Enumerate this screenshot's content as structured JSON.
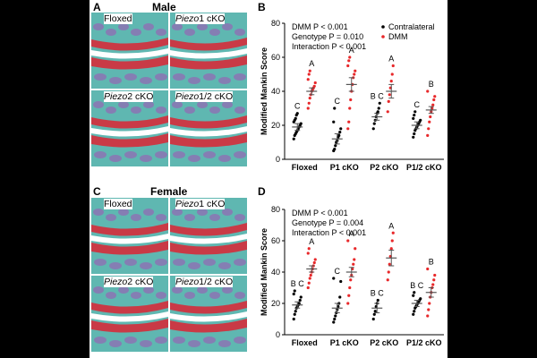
{
  "colors": {
    "contralateral": "#000000",
    "dmm": "#e8282a",
    "cartilage": "#c93a46",
    "bone": "#5fb7b1",
    "marrow": "#8a78b4"
  },
  "panels": [
    {
      "letter": "A",
      "title": "Male",
      "images": [
        {
          "label": "Floxed"
        },
        {
          "label_italic": "Piezo",
          "label_rest": "1 cKO"
        },
        {
          "label_italic": "Piezo",
          "label_rest": "2 cKO"
        },
        {
          "label_italic": "Piezo",
          "label_rest": "1/2 cKO"
        }
      ]
    },
    {
      "letter": "C",
      "title": "Female",
      "images": [
        {
          "label": "Floxed"
        },
        {
          "label_italic": "Piezo",
          "label_rest": "1 cKO"
        },
        {
          "label_italic": "Piezo",
          "label_rest": "2 cKO"
        },
        {
          "label_italic": "Piezo",
          "label_rest": "1/2 cKO"
        }
      ]
    }
  ],
  "chart_data": [
    {
      "letter": "B",
      "type": "scatter",
      "ylabel": "Modified Mankin Score",
      "ylim": [
        0,
        80
      ],
      "yticks": [
        0,
        20,
        40,
        60,
        80
      ],
      "categories": [
        "Floxed",
        "P1 cKO",
        "P2 cKO",
        "P1/2 cKO"
      ],
      "stats": [
        "DMM P < 0.001",
        "Genotype P = 0.010",
        "Interaction P < 0.001"
      ],
      "legend": [
        "Contralateral",
        "DMM"
      ],
      "series": [
        {
          "name": "Contralateral",
          "means": [
            19,
            12,
            25,
            20
          ],
          "sems": [
            2,
            3,
            2,
            2
          ],
          "letters": [
            "C",
            "C",
            "B C",
            "C"
          ],
          "points": [
            [
              12,
              14,
              15,
              16,
              17,
              18,
              19,
              20,
              21,
              22,
              23,
              24,
              26,
              27
            ],
            [
              5,
              6,
              8,
              10,
              11,
              13,
              14,
              16,
              18,
              22,
              30
            ],
            [
              18,
              21,
              23,
              25,
              27,
              28,
              30,
              33
            ],
            [
              13,
              15,
              17,
              18,
              19,
              20,
              21,
              22,
              23,
              24,
              26,
              28
            ]
          ]
        },
        {
          "name": "DMM",
          "means": [
            40,
            44,
            40,
            29
          ],
          "sems": [
            2,
            4,
            4,
            2
          ],
          "letters": [
            "A",
            "A",
            "A",
            "B"
          ],
          "points": [
            [
              30,
              33,
              36,
              38,
              40,
              41,
              42,
              43,
              45,
              47,
              50,
              52
            ],
            [
              18,
              22,
              30,
              35,
              40,
              44,
              48,
              50,
              52,
              55,
              58,
              60
            ],
            [
              28,
              34,
              38,
              42,
              46,
              50,
              55
            ],
            [
              14,
              18,
              22,
              25,
              28,
              30,
              32,
              35,
              37,
              40
            ]
          ]
        }
      ]
    },
    {
      "letter": "D",
      "type": "scatter",
      "ylabel": "Modified Mankin Score",
      "ylim": [
        0,
        80
      ],
      "yticks": [
        0,
        20,
        40,
        60,
        80
      ],
      "categories": [
        "Floxed",
        "P1 cKO",
        "P2 cKO",
        "P1/2 cKO"
      ],
      "stats": [
        "DMM P < 0.001",
        "Genotype P = 0.004",
        "Interaction P < 0.001"
      ],
      "series": [
        {
          "name": "Contralateral",
          "means": [
            19,
            17,
            17,
            20
          ],
          "sems": [
            2,
            3,
            3,
            2
          ],
          "letters": [
            "B C",
            "C",
            "B C",
            "B C"
          ],
          "points": [
            [
              10,
              13,
              15,
              17,
              18,
              19,
              20,
              22,
              24,
              26,
              28
            ],
            [
              8,
              10,
              12,
              14,
              16,
              18,
              20,
              24,
              34,
              36
            ],
            [
              10,
              13,
              15,
              18,
              20,
              22
            ],
            [
              13,
              15,
              17,
              18,
              19,
              20,
              21,
              22,
              23,
              25,
              27
            ]
          ]
        },
        {
          "name": "DMM",
          "means": [
            42,
            40,
            49,
            27
          ],
          "sems": [
            2,
            3,
            5,
            3
          ],
          "letters": [
            "A",
            "A",
            "A",
            "B"
          ],
          "points": [
            [
              30,
              33,
              36,
              38,
              40,
              42,
              44,
              46,
              48,
              52,
              55
            ],
            [
              20,
              25,
              30,
              35,
              38,
              42,
              45,
              48,
              55,
              60
            ],
            [
              35,
              40,
              45,
              50,
              55,
              60,
              65
            ],
            [
              12,
              16,
              20,
              24,
              27,
              30,
              32,
              35,
              38,
              42
            ]
          ]
        }
      ]
    }
  ]
}
